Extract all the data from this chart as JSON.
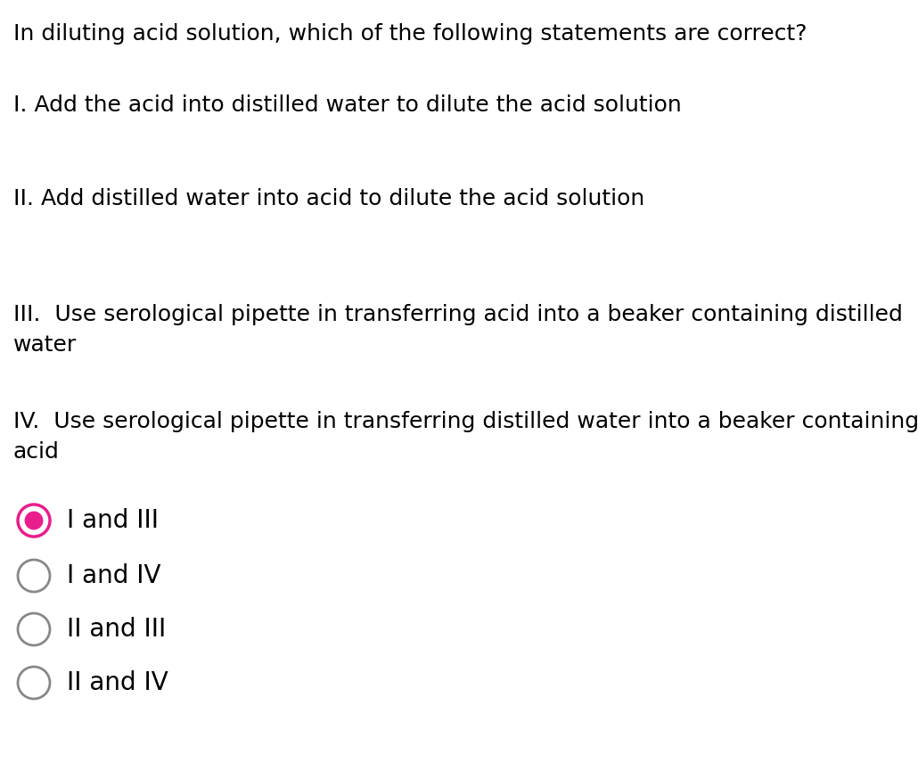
{
  "background_color": "#ffffff",
  "text_color": "#000000",
  "question": "In diluting acid solution, which of the following statements are correct?",
  "statements": [
    "I. Add the acid into distilled water to dilute the acid solution",
    "II. Add distilled water into acid to dilute the acid solution",
    "III.  Use serological pipette in transferring acid into a beaker containing distilled\nwater",
    "IV.  Use serological pipette in transferring distilled water into a beaker containing\nacid"
  ],
  "choices": [
    "I and III",
    "I and IV",
    "II and III",
    "II and IV"
  ],
  "selected_index": 0,
  "selected_fill_color": "#e91e8c",
  "selected_ring_color": "#e91e8c",
  "unselected_ring_color": "#888888",
  "font_size_question": 18,
  "font_size_statements": 18,
  "font_size_choices": 20
}
